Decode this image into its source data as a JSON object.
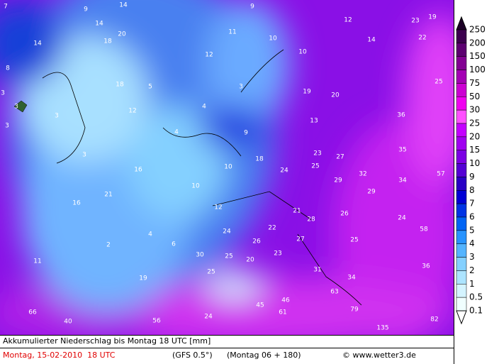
{
  "map": {
    "values": [
      7,
      9,
      14,
      9,
      12,
      23,
      19,
      14,
      20,
      11,
      10,
      12,
      10,
      14,
      22,
      14,
      18,
      8,
      18,
      5,
      3,
      19,
      20,
      25,
      3,
      3,
      12,
      4,
      3,
      36,
      13,
      4,
      9,
      3,
      3,
      18,
      23,
      27,
      35,
      16,
      10,
      24,
      25,
      29,
      32,
      34,
      57,
      21,
      10,
      29,
      16,
      12,
      21,
      26,
      28,
      24,
      4,
      24,
      22,
      58,
      6,
      26,
      27,
      25,
      2,
      30,
      25,
      23,
      20,
      11,
      31,
      36,
      25,
      19,
      34,
      46,
      63,
      45,
      61,
      79,
      66,
      24,
      40,
      56,
      82,
      135
    ]
  },
  "legend": {
    "levels": [
      250,
      200,
      150,
      100,
      75,
      50,
      30,
      25,
      20,
      15,
      10,
      9,
      8,
      7,
      6,
      5,
      4,
      3,
      2,
      1,
      0.5,
      0.1
    ],
    "colors": [
      "#1c0026",
      "#3c004e",
      "#5c0070",
      "#820092",
      "#a400b4",
      "#cc00d2",
      "#f000f0",
      "#ff50ff",
      "#c400ff",
      "#a000f0",
      "#7c00e4",
      "#5400d4",
      "#2800c4",
      "#0000d4",
      "#0034e4",
      "#0064f4",
      "#2894ff",
      "#54b4ff",
      "#84d0ff",
      "#acE4ff",
      "#d4f4ff",
      "#f0ffff",
      "#ffffff"
    ]
  },
  "footer": {
    "title": "Akkumulierter Niederschlag bis Montag 18 UTC [mm]",
    "date": "Montag, 15-02-2010  18 UTC",
    "model": "(GFS 0.5°)",
    "run": "(Montag 06 + 180)",
    "copyright": "© www.wetter3.de"
  }
}
